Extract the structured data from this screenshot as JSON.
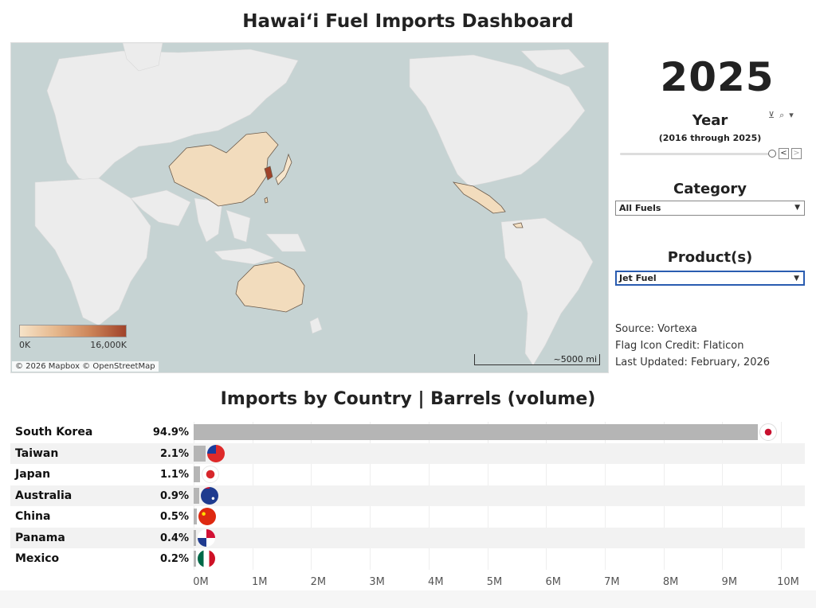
{
  "dashboard": {
    "title": "Hawaiʻi Fuel Imports Dashboard"
  },
  "map": {
    "legend": {
      "min_label": "0K",
      "max_label": "16,000K"
    },
    "attribution": "© 2026 Mapbox © OpenStreetMap",
    "scale_label": "~5000 mi",
    "colors": {
      "ocean": "#c6d3d3",
      "land": "#ececec",
      "low": "#f6e3c8",
      "high": "#a0432a"
    },
    "highlighted_countries": [
      "China",
      "South Korea",
      "Japan",
      "Taiwan",
      "Australia",
      "Mexico",
      "Panama"
    ]
  },
  "filters": {
    "selected_year": "2025",
    "year": {
      "heading": "Year",
      "range_note": "(2016 through 2025)",
      "prev": "<",
      "next": ">"
    },
    "category": {
      "heading": "Category",
      "value": "All Fuels"
    },
    "product": {
      "heading": "Product(s)",
      "value": "Jet Fuel"
    }
  },
  "credits": {
    "source": "Source: Vortexa",
    "flag_credit": "Flag Icon Credit: Flaticon",
    "updated": "Last Updated: February, 2026"
  },
  "chart_data": {
    "type": "bar",
    "orientation": "horizontal",
    "title": "Imports by Country  |  Barrels (volume)",
    "categories": [
      "South Korea",
      "Taiwan",
      "Japan",
      "Australia",
      "China",
      "Panama",
      "Mexico"
    ],
    "percent_labels": [
      "94.9%",
      "2.1%",
      "1.1%",
      "0.9%",
      "0.5%",
      "0.4%",
      "0.2%"
    ],
    "values": [
      9600000,
      210000,
      110000,
      90000,
      50000,
      40000,
      20000
    ],
    "xlim": [
      0,
      10000000
    ],
    "ticks": [
      0,
      1000000,
      2000000,
      3000000,
      4000000,
      5000000,
      6000000,
      7000000,
      8000000,
      9000000,
      10000000
    ],
    "tick_labels": [
      "0M",
      "1M",
      "2M",
      "3M",
      "4M",
      "5M",
      "6M",
      "7M",
      "8M",
      "9M",
      "10M"
    ],
    "bar_color": "#b5b5b5"
  }
}
